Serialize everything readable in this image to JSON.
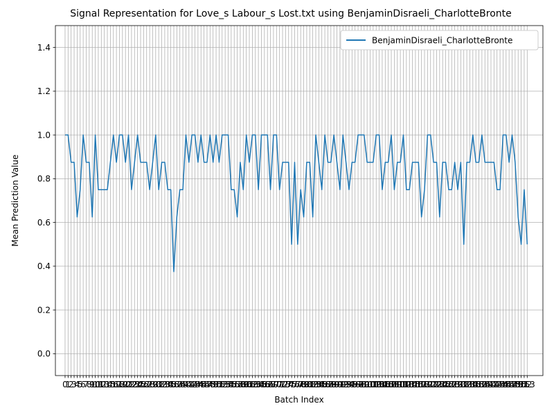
{
  "chart_data": {
    "type": "line",
    "title": "Signal Representation for Love_s Labour_s Lost.txt using BenjaminDisraeli_CharlotteBronte",
    "xlabel": "Batch Index",
    "ylabel": "Mean Prediction Value",
    "ylim": [
      -0.1,
      1.5
    ],
    "xlim": [
      -3.2,
      158.2
    ],
    "grid": true,
    "legend_position": "top-right",
    "y_ticks": [
      "0.0",
      "0.2",
      "0.4",
      "0.6",
      "0.8",
      "1.0",
      "1.2",
      "1.4"
    ],
    "y_tick_values": [
      0.0,
      0.2,
      0.4,
      0.6,
      0.8,
      1.0,
      1.2,
      1.4
    ],
    "x_ticks": [
      0,
      1,
      2,
      3,
      4,
      5,
      6,
      7,
      8,
      9,
      10,
      11,
      12,
      13,
      14,
      15,
      16,
      17,
      18,
      19,
      20,
      21,
      22,
      23,
      24,
      25,
      26,
      27,
      28,
      29,
      30,
      31,
      32,
      33,
      34,
      35,
      36,
      37,
      38,
      39,
      40,
      41,
      42,
      43,
      44,
      45,
      46,
      47,
      48,
      49,
      50,
      51,
      52,
      53,
      54,
      55,
      56,
      57,
      58,
      59,
      60,
      61,
      62,
      63,
      64,
      65,
      66,
      67,
      68,
      69,
      70,
      71,
      72,
      73,
      74,
      75,
      76,
      77,
      78,
      79,
      80,
      81,
      82,
      83,
      84,
      85,
      86,
      87,
      88,
      89,
      90,
      91,
      92,
      93,
      94,
      95,
      96,
      97,
      98,
      99,
      100,
      101,
      102,
      103,
      104,
      105,
      106,
      107,
      108,
      109,
      110,
      111,
      112,
      113,
      114,
      115,
      116,
      117,
      118,
      119,
      120,
      121,
      122,
      123,
      124,
      125,
      126,
      127,
      128,
      129,
      130,
      131,
      132,
      133,
      134,
      135,
      136,
      137,
      138,
      139,
      140,
      141,
      142,
      143,
      144,
      145,
      146,
      147,
      148,
      149,
      150,
      151,
      152,
      153
    ],
    "colors": {
      "line": "#1f77b4",
      "grid": "#b0b0b0",
      "axes": "#000000"
    },
    "series": [
      {
        "name": "BenjaminDisraeli_CharlotteBronte",
        "x": [
          0,
          1,
          2,
          3,
          4,
          5,
          6,
          7,
          8,
          9,
          10,
          11,
          12,
          13,
          14,
          15,
          16,
          17,
          18,
          19,
          20,
          21,
          22,
          23,
          24,
          25,
          26,
          27,
          28,
          29,
          30,
          31,
          32,
          33,
          34,
          35,
          36,
          37,
          38,
          39,
          40,
          41,
          42,
          43,
          44,
          45,
          46,
          47,
          48,
          49,
          50,
          51,
          52,
          53,
          54,
          55,
          56,
          57,
          58,
          59,
          60,
          61,
          62,
          63,
          64,
          65,
          66,
          67,
          68,
          69,
          70,
          71,
          72,
          73,
          74,
          75,
          76,
          77,
          78,
          79,
          80,
          81,
          82,
          83,
          84,
          85,
          86,
          87,
          88,
          89,
          90,
          91,
          92,
          93,
          94,
          95,
          96,
          97,
          98,
          99,
          100,
          101,
          102,
          103,
          104,
          105,
          106,
          107,
          108,
          109,
          110,
          111,
          112,
          113,
          114,
          115,
          116,
          117,
          118,
          119,
          120,
          121,
          122,
          123,
          124,
          125,
          126,
          127,
          128,
          129,
          130,
          131,
          132,
          133,
          134,
          135,
          136,
          137,
          138,
          139,
          140,
          141,
          142,
          143,
          144,
          145,
          146,
          147,
          148,
          149,
          150,
          151,
          152,
          153
        ],
        "values": [
          1.0,
          1.0,
          0.875,
          0.875,
          0.625,
          0.75,
          1.0,
          0.875,
          0.875,
          0.625,
          1.0,
          0.75,
          0.75,
          0.75,
          0.75,
          0.875,
          1.0,
          0.875,
          1.0,
          1.0,
          0.875,
          1.0,
          0.75,
          0.875,
          1.0,
          0.875,
          0.875,
          0.875,
          0.75,
          0.875,
          1.0,
          0.75,
          0.875,
          0.875,
          0.75,
          0.75,
          0.375,
          0.625,
          0.75,
          0.75,
          1.0,
          0.875,
          1.0,
          1.0,
          0.875,
          1.0,
          0.875,
          0.875,
          1.0,
          0.875,
          1.0,
          0.875,
          1.0,
          1.0,
          1.0,
          0.75,
          0.75,
          0.625,
          0.875,
          0.75,
          1.0,
          0.875,
          1.0,
          1.0,
          0.75,
          1.0,
          1.0,
          1.0,
          0.75,
          1.0,
          1.0,
          0.75,
          0.875,
          0.875,
          0.875,
          0.5,
          0.875,
          0.5,
          0.75,
          0.625,
          0.875,
          0.875,
          0.625,
          1.0,
          0.875,
          0.75,
          1.0,
          0.875,
          0.875,
          1.0,
          0.875,
          0.75,
          1.0,
          0.875,
          0.75,
          0.875,
          0.875,
          1.0,
          1.0,
          1.0,
          0.875,
          0.875,
          0.875,
          1.0,
          1.0,
          0.75,
          0.875,
          0.875,
          1.0,
          0.75,
          0.875,
          0.875,
          1.0,
          0.75,
          0.75,
          0.875,
          0.875,
          0.875,
          0.625,
          0.75,
          1.0,
          1.0,
          0.875,
          0.875,
          0.625,
          0.875,
          0.875,
          0.75,
          0.75,
          0.875,
          0.75,
          0.875,
          0.5,
          0.875,
          0.875,
          1.0,
          0.875,
          0.875,
          1.0,
          0.875,
          0.875,
          0.875,
          0.875,
          0.75,
          0.75,
          1.0,
          1.0,
          0.875,
          1.0,
          0.875,
          0.625,
          0.5,
          0.75,
          0.5
        ]
      }
    ]
  }
}
